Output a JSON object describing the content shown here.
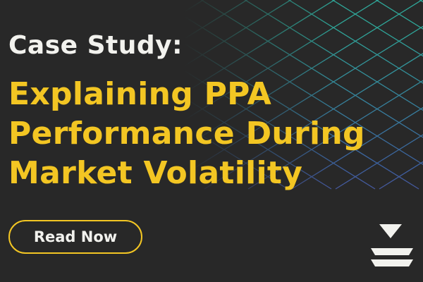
{
  "eyebrow": "Case Study:",
  "title": [
    "Explaining PPA",
    "Performance During",
    "Market Volatility"
  ],
  "button": "Read Now"
}
